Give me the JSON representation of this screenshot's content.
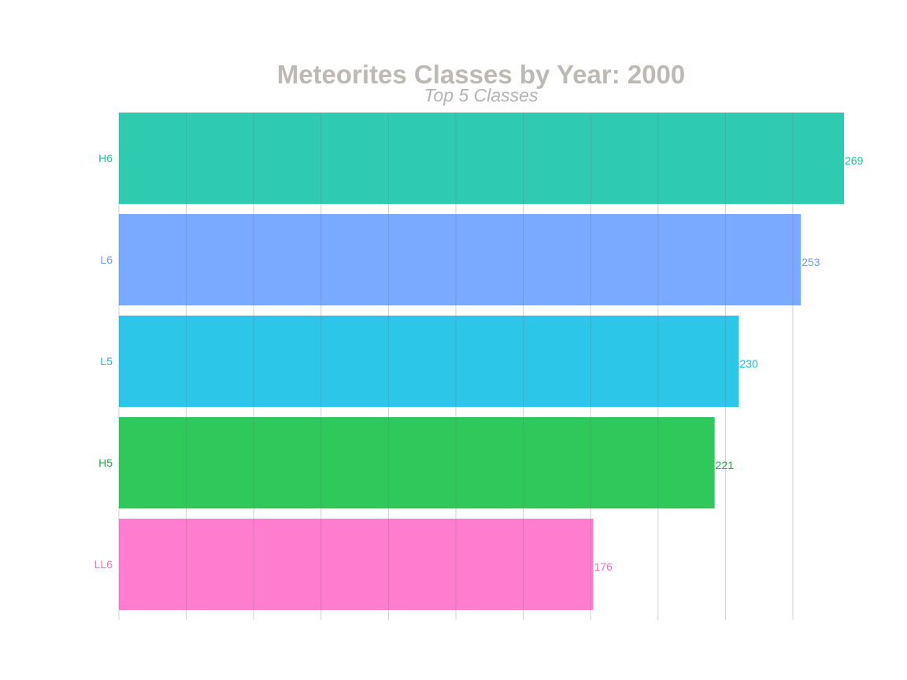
{
  "chart_data": {
    "type": "bar",
    "orientation": "horizontal",
    "title": "Meteorites Classes by Year: 2000",
    "subtitle": "Top 5 Classes",
    "categories": [
      "H6",
      "L6",
      "L5",
      "H5",
      "LL6"
    ],
    "values": [
      269,
      253,
      230,
      221,
      176
    ],
    "colors": [
      "#2ecbb0",
      "#7aaaff",
      "#2cc6e8",
      "#2ec95a",
      "#ff7dcf"
    ],
    "label_colors": [
      "#1fbf9a",
      "#6b9cf0",
      "#1db7df",
      "#17b04a",
      "#f06fc4"
    ],
    "xlim": [
      0,
      269
    ],
    "grid": true
  }
}
